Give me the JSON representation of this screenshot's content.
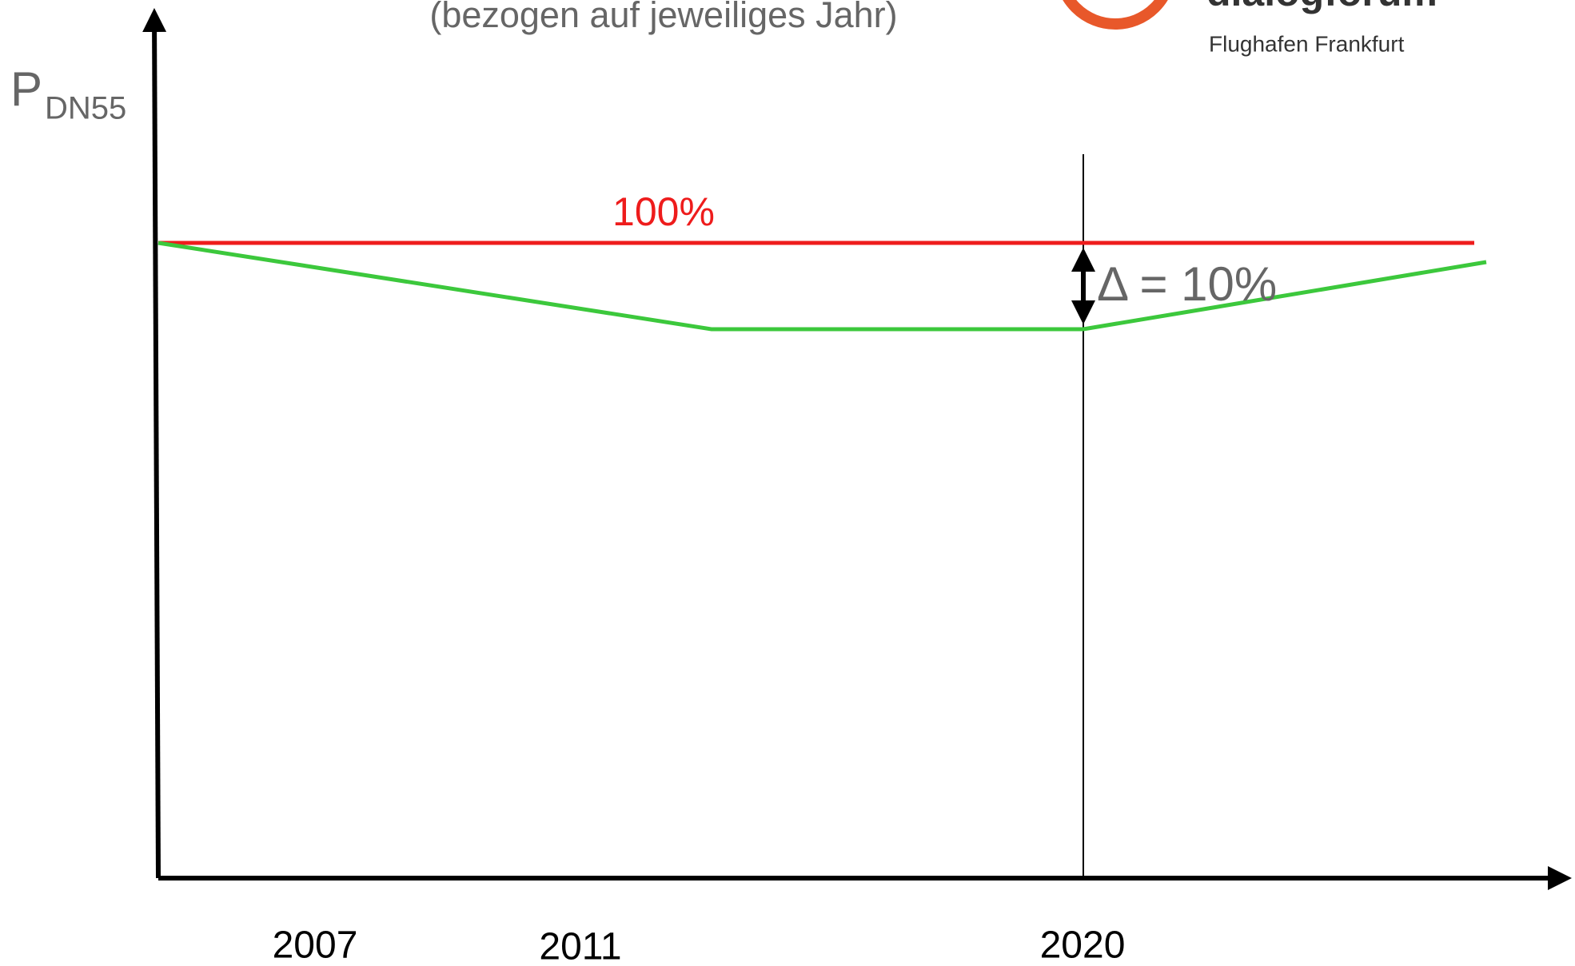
{
  "subtitle": "(bezogen auf jeweiliges Jahr)",
  "logo": {
    "name": "dialogforum",
    "tagline": "Flughafen Frankfurt"
  },
  "axis": {
    "symbol": "P",
    "subscript": "DN55"
  },
  "reference_label": "100%",
  "delta_label": "Δ = 10%",
  "years": [
    "2007",
    "2011",
    "2020"
  ]
}
